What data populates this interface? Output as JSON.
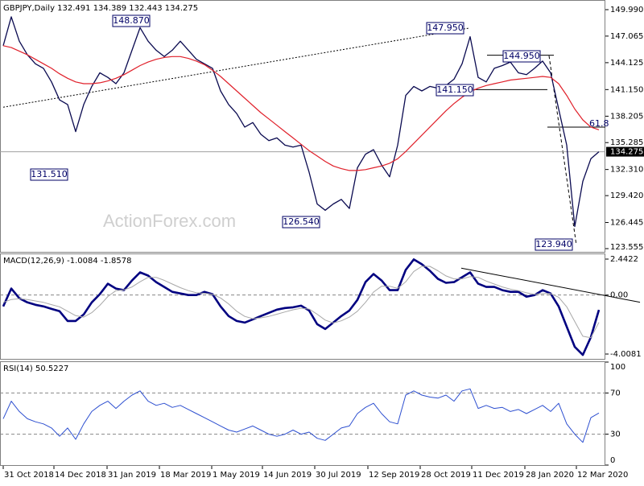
{
  "header": "GBPJPY,Daily  132.491 134.389 132.443 134.275",
  "watermark": "ActionForex.com",
  "chart_data": [
    {
      "type": "line",
      "xlim": [
        -0.4,
        74.8
      ],
      "ylim": [
        123.2,
        150.88
      ],
      "yticks": [
        {
          "value": 149.99,
          "label": "149.990"
        },
        147.065,
        144.125,
        {
          "value": 141.15,
          "label": "141.150"
        },
        138.205,
        135.285,
        {
          "value": 132.31,
          "label": "132.310"
        },
        {
          "value": 129.42,
          "label": "129.420"
        },
        126.445,
        123.555
      ],
      "x": [
        0,
        1,
        2,
        3,
        4,
        5,
        6,
        7,
        8,
        9,
        10,
        11,
        12,
        13,
        14,
        15,
        16,
        17,
        18,
        19,
        20,
        21,
        22,
        23,
        24,
        25,
        26,
        27,
        28,
        29,
        30,
        31,
        32,
        33,
        34,
        35,
        36,
        37,
        38,
        39,
        40,
        41,
        42,
        43,
        44,
        45,
        46,
        47,
        48,
        49,
        50,
        51,
        52,
        53,
        54,
        55,
        56,
        57,
        58,
        59,
        60,
        61,
        62,
        63,
        64,
        65,
        66,
        67,
        68,
        69,
        70,
        71,
        72,
        73,
        74
      ],
      "series": [
        {
          "color": "#0a0a50",
          "width": 1.3,
          "values": [
            146.0,
            149.2,
            146.5,
            145.0,
            144.0,
            143.5,
            142.0,
            140.0,
            139.5,
            136.5,
            139.5,
            141.5,
            143.0,
            142.5,
            141.8,
            143.0,
            145.5,
            148.0,
            146.5,
            145.5,
            144.8,
            145.5,
            146.5,
            145.5,
            144.5,
            144.0,
            143.5,
            141.0,
            139.5,
            138.5,
            137.0,
            137.5,
            136.2,
            135.5,
            135.8,
            135.0,
            134.8,
            135.0,
            132.0,
            128.5,
            127.8,
            128.5,
            129.0,
            128.0,
            132.5,
            134.0,
            134.5,
            132.8,
            131.5,
            135.0,
            140.5,
            141.5,
            141.0,
            141.5,
            141.3,
            141.6,
            142.3,
            144.0,
            147.0,
            142.5,
            142.0,
            143.5,
            143.8,
            144.2,
            143.0,
            142.8,
            143.5,
            144.3,
            143.0,
            139.0,
            135.0,
            126.0,
            131.0,
            133.5,
            134.275
          ]
        },
        {
          "color": "#e0202a",
          "width": 1.2,
          "values": [
            146.0,
            145.8,
            145.4,
            145.0,
            144.5,
            144.0,
            143.5,
            142.9,
            142.4,
            142.0,
            141.8,
            141.8,
            141.9,
            142.1,
            142.4,
            142.8,
            143.3,
            143.8,
            144.2,
            144.5,
            144.7,
            144.8,
            144.8,
            144.6,
            144.3,
            143.9,
            143.3,
            142.6,
            141.8,
            141.0,
            140.2,
            139.4,
            138.6,
            137.9,
            137.2,
            136.5,
            135.8,
            135.1,
            134.4,
            133.8,
            133.2,
            132.7,
            132.4,
            132.2,
            132.2,
            132.3,
            132.5,
            132.7,
            133.0,
            133.5,
            134.3,
            135.2,
            136.1,
            137.0,
            137.9,
            138.8,
            139.6,
            140.3,
            140.9,
            141.3,
            141.6,
            141.8,
            142.0,
            142.2,
            142.3,
            142.4,
            142.5,
            142.6,
            142.5,
            141.8,
            140.5,
            139.0,
            137.8,
            137.0,
            136.7
          ]
        }
      ],
      "current_price": 134.275,
      "lines": [
        {
          "x": [
            0,
            57.9
          ],
          "y": [
            139.2,
            147.95
          ],
          "style": "dotted"
        },
        {
          "x": [
            60.1,
            68.4
          ],
          "y": [
            144.95,
            144.95
          ],
          "style": "solid"
        },
        {
          "x": [
            58.1,
            67.6
          ],
          "y": [
            141.15,
            141.15
          ],
          "style": "solid"
        },
        {
          "x": [
            67.6,
            74.8
          ],
          "y": [
            137.0,
            137.0
          ],
          "style": "solid"
        },
        {
          "x": [
            67.8,
            71.2
          ],
          "y": [
            144.9,
            123.94
          ],
          "style": "dashed"
        }
      ],
      "annotations": [
        {
          "label": "148.870",
          "x": 17.1,
          "y": 148.87
        },
        {
          "label": "131.510",
          "x": 8.6,
          "y": 131.51
        },
        {
          "label": "126.540",
          "x": 39.6,
          "y": 126.54
        },
        {
          "label": "147.950",
          "x": 57.9,
          "y": 147.95
        },
        {
          "label": "144.950",
          "x": 63,
          "y": 144.95
        },
        {
          "label": "141.150",
          "x": 55,
          "y": 141.15
        },
        {
          "label": "123.940",
          "x": 71.2,
          "y": 123.94
        },
        {
          "label": "61.8",
          "x": 74,
          "y": 137.0
        }
      ]
    },
    {
      "type": "line",
      "title": "MACD(12,26,9) -1.0084 -1.8578",
      "xlim": [
        -0.4,
        74.8
      ],
      "ylim": [
        -4.39,
        2.77
      ],
      "yticks": [
        2.4422,
        {
          "value": 0,
          "label": "0.00"
        },
        -4.0081
      ],
      "x": [
        0,
        1,
        2,
        3,
        4,
        5,
        6,
        7,
        8,
        9,
        10,
        11,
        12,
        13,
        14,
        15,
        16,
        17,
        18,
        19,
        20,
        21,
        22,
        23,
        24,
        25,
        26,
        27,
        28,
        29,
        30,
        31,
        32,
        33,
        34,
        35,
        36,
        37,
        38,
        39,
        40,
        41,
        42,
        43,
        44,
        45,
        46,
        47,
        48,
        49,
        50,
        51,
        52,
        53,
        54,
        55,
        56,
        57,
        58,
        59,
        60,
        61,
        62,
        63,
        64,
        65,
        66,
        67,
        68,
        69,
        70,
        71,
        72,
        73,
        74
      ],
      "series": [
        {
          "color": "#000080",
          "width": 2.6,
          "values": [
            -0.77,
            0.44,
            -0.22,
            -0.5,
            -0.66,
            -0.77,
            -0.94,
            -1.1,
            -1.76,
            -1.76,
            -1.32,
            -0.5,
            0.06,
            0.77,
            0.44,
            0.33,
            0.99,
            1.54,
            1.32,
            0.88,
            0.55,
            0.22,
            0.11,
            0,
            0,
            0.22,
            0.06,
            -0.77,
            -1.43,
            -1.76,
            -1.87,
            -1.65,
            -1.43,
            -1.21,
            -0.99,
            -0.88,
            -0.83,
            -0.72,
            -1.05,
            -1.98,
            -2.31,
            -1.87,
            -1.43,
            -1.05,
            -0.33,
            0.88,
            1.43,
            0.99,
            0.33,
            0.33,
            1.71,
            2.42,
            2.09,
            1.65,
            1.1,
            0.83,
            0.88,
            1.21,
            1.54,
            0.77,
            0.55,
            0.55,
            0.33,
            0.22,
            0.22,
            -0.11,
            0,
            0.33,
            0.11,
            -0.77,
            -2.15,
            -3.52,
            -4.07,
            -2.86,
            -1.0084
          ]
        },
        {
          "color": "#a8a8a8",
          "width": 1,
          "values": [
            -0.5,
            -0.3,
            -0.25,
            -0.3,
            -0.4,
            -0.5,
            -0.65,
            -0.8,
            -1.1,
            -1.4,
            -1.5,
            -1.2,
            -0.7,
            -0.1,
            0.3,
            0.35,
            0.55,
            0.9,
            1.2,
            1.2,
            1.0,
            0.75,
            0.5,
            0.3,
            0.15,
            0.12,
            0.05,
            -0.2,
            -0.6,
            -1.1,
            -1.45,
            -1.6,
            -1.55,
            -1.45,
            -1.3,
            -1.15,
            -1.0,
            -0.9,
            -0.95,
            -1.3,
            -1.7,
            -1.9,
            -1.75,
            -1.5,
            -1.1,
            -0.5,
            0.2,
            0.6,
            0.6,
            0.45,
            0.9,
            1.6,
            1.95,
            1.95,
            1.65,
            1.3,
            1.1,
            1.1,
            1.25,
            1.2,
            0.95,
            0.75,
            0.55,
            0.4,
            0.3,
            0.15,
            0.05,
            0.1,
            0.1,
            -0.15,
            -0.8,
            -1.8,
            -2.8,
            -2.9,
            -1.8578
          ]
        }
      ],
      "lines": [
        {
          "x": [
            -0.4,
            74.8
          ],
          "y": [
            0,
            0
          ],
          "style": "dashed"
        },
        {
          "x": [
            56.9,
            79.1
          ],
          "y": [
            1.83,
            -0.49
          ],
          "style": "solid"
        }
      ]
    },
    {
      "type": "line",
      "title": "RSI(14) 50.5227",
      "xlim": [
        -0.4,
        74.8
      ],
      "ylim": [
        0,
        100
      ],
      "yticks": [
        100,
        70,
        30,
        0
      ],
      "xticks": [
        {
          "value": 0,
          "label": "31 Oct 2018"
        },
        {
          "value": 6.3,
          "label": "14 Dec 2018"
        },
        {
          "value": 12.9,
          "label": "31 Jan 2019"
        },
        {
          "value": 19.4,
          "label": "18 Mar 2019"
        },
        {
          "value": 25.9,
          "label": "1 May 2019"
        },
        {
          "value": 32.2,
          "label": "14 Jun 2019"
        },
        {
          "value": 38.7,
          "label": "30 Jul 2019"
        },
        {
          "value": 45.3,
          "label": "12 Sep 2019"
        },
        {
          "value": 51.8,
          "label": "28 Oct 2019"
        },
        {
          "value": 58.2,
          "label": "11 Dec 2019"
        },
        {
          "value": 64.8,
          "label": "28 Jan 2020"
        },
        {
          "value": 71.2,
          "label": "12 Mar 2020"
        }
      ],
      "x": [
        0,
        1,
        2,
        3,
        4,
        5,
        6,
        7,
        8,
        9,
        10,
        11,
        12,
        13,
        14,
        15,
        16,
        17,
        18,
        19,
        20,
        21,
        22,
        23,
        24,
        25,
        26,
        27,
        28,
        29,
        30,
        31,
        32,
        33,
        34,
        35,
        36,
        37,
        38,
        39,
        40,
        41,
        42,
        43,
        44,
        45,
        46,
        47,
        48,
        49,
        50,
        51,
        52,
        53,
        54,
        55,
        56,
        57,
        58,
        59,
        60,
        61,
        62,
        63,
        64,
        65,
        66,
        67,
        68,
        69,
        70,
        71,
        72,
        73,
        74
      ],
      "series": [
        {
          "color": "#2d4fd0",
          "width": 1,
          "values": [
            45,
            62,
            52,
            45,
            42,
            40,
            36,
            28,
            36,
            25,
            40,
            52,
            58,
            62,
            55,
            62,
            68,
            72,
            62,
            58,
            60,
            56,
            58,
            54,
            50,
            46,
            42,
            38,
            34,
            32,
            35,
            38,
            34,
            30,
            28,
            30,
            34,
            30,
            32,
            26,
            24,
            30,
            36,
            38,
            50,
            56,
            60,
            50,
            42,
            40,
            68,
            72,
            68,
            66,
            65,
            68,
            62,
            72,
            74,
            55,
            58,
            55,
            56,
            52,
            54,
            50,
            54,
            58,
            52,
            60,
            40,
            30,
            22,
            46,
            50.5227
          ]
        }
      ],
      "lines": [
        {
          "x": [
            -0.4,
            74.8
          ],
          "y": [
            70,
            70
          ],
          "style": "dashed"
        },
        {
          "x": [
            -0.4,
            74.8
          ],
          "y": [
            30,
            30
          ],
          "style": "dashed"
        }
      ]
    }
  ]
}
